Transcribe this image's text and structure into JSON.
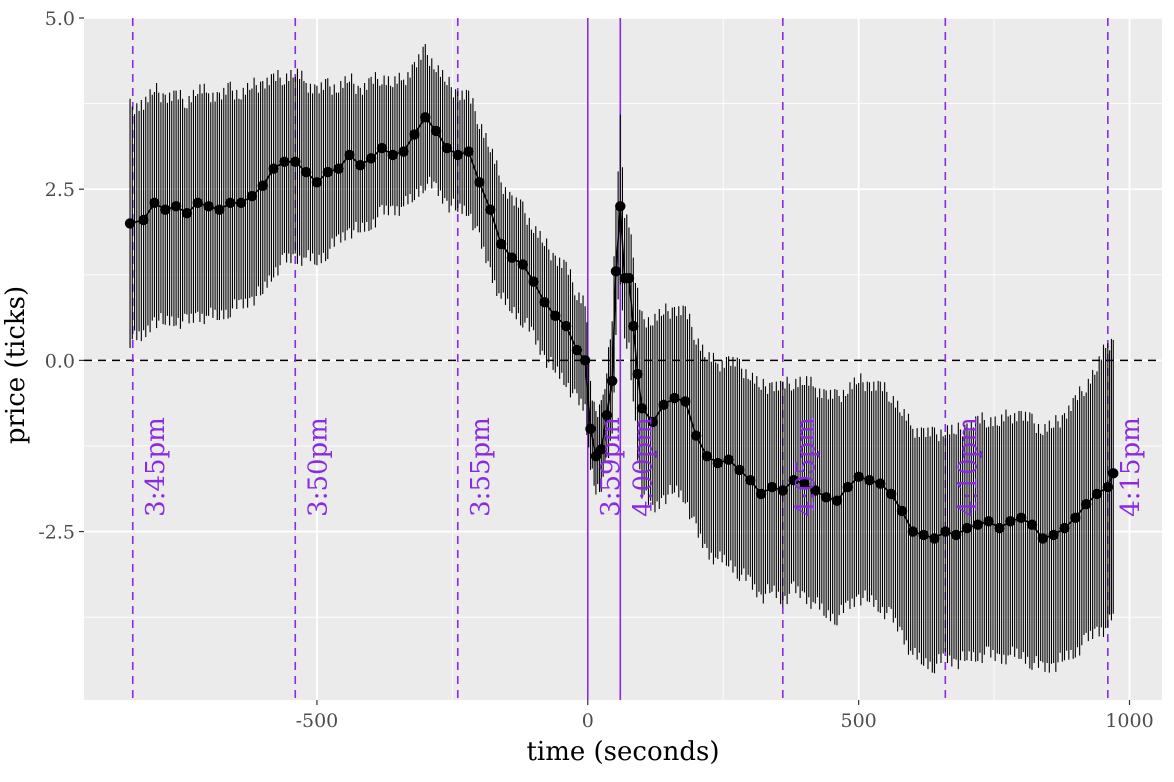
{
  "chart_data": {
    "type": "line",
    "title": "",
    "xlabel": "time (seconds)",
    "ylabel": "price (ticks)",
    "xlim": [
      -930,
      1060
    ],
    "ylim": [
      -4.96,
      5.0
    ],
    "x_ticks": [
      {
        "value": -500,
        "label": "-500"
      },
      {
        "value": 0,
        "label": "0"
      },
      {
        "value": 500,
        "label": "500"
      },
      {
        "value": 1000,
        "label": "1000"
      }
    ],
    "y_ticks": [
      {
        "value": 5.0,
        "label": "5.0"
      },
      {
        "value": 2.5,
        "label": "2.5"
      },
      {
        "value": 0.0,
        "label": "0.0"
      },
      {
        "value": -2.5,
        "label": "-2.5"
      }
    ],
    "grid": true,
    "reference_hline": {
      "y": 0,
      "style": "dashed",
      "color": "#000000"
    },
    "vertical_lines": [
      {
        "x": -840,
        "label": "3:45pm",
        "style": "dashed"
      },
      {
        "x": -540,
        "label": "3:50pm",
        "style": "dashed"
      },
      {
        "x": -240,
        "label": "3:55pm",
        "style": "dashed"
      },
      {
        "x": 0,
        "label": "3:59pm",
        "style": "solid"
      },
      {
        "x": 60,
        "label": "4:00pm",
        "style": "solid"
      },
      {
        "x": 360,
        "label": "4:05pm",
        "style": "dashed"
      },
      {
        "x": 660,
        "label": "4:10pm",
        "style": "dashed"
      },
      {
        "x": 960,
        "label": "4:15pm",
        "style": "dashed"
      }
    ],
    "vline_color": "#8a2be2",
    "series_color": "#000000",
    "series": [
      {
        "points": [
          {
            "x": -845,
            "y": 2.0,
            "lo": 0.3,
            "hi": 3.7
          },
          {
            "x": -820,
            "y": 2.05,
            "lo": 0.35,
            "hi": 3.75
          },
          {
            "x": -800,
            "y": 2.3,
            "lo": 0.6,
            "hi": 3.95
          },
          {
            "x": -780,
            "y": 2.2,
            "lo": 0.55,
            "hi": 3.85
          },
          {
            "x": -760,
            "y": 2.25,
            "lo": 0.6,
            "hi": 3.85
          },
          {
            "x": -740,
            "y": 2.15,
            "lo": 0.55,
            "hi": 3.8
          },
          {
            "x": -720,
            "y": 2.3,
            "lo": 0.65,
            "hi": 3.95
          },
          {
            "x": -700,
            "y": 2.25,
            "lo": 0.65,
            "hi": 3.9
          },
          {
            "x": -680,
            "y": 2.2,
            "lo": 0.65,
            "hi": 3.85
          },
          {
            "x": -660,
            "y": 2.3,
            "lo": 0.75,
            "hi": 3.95
          },
          {
            "x": -640,
            "y": 2.3,
            "lo": 0.8,
            "hi": 3.9
          },
          {
            "x": -620,
            "y": 2.4,
            "lo": 0.9,
            "hi": 4.0
          },
          {
            "x": -600,
            "y": 2.55,
            "lo": 1.0,
            "hi": 4.05
          },
          {
            "x": -580,
            "y": 2.8,
            "lo": 1.3,
            "hi": 4.1
          },
          {
            "x": -560,
            "y": 2.9,
            "lo": 1.45,
            "hi": 4.15
          },
          {
            "x": -540,
            "y": 2.9,
            "lo": 1.5,
            "hi": 4.2
          },
          {
            "x": -520,
            "y": 2.75,
            "lo": 1.5,
            "hi": 4.05
          },
          {
            "x": -500,
            "y": 2.6,
            "lo": 1.45,
            "hi": 3.95
          },
          {
            "x": -480,
            "y": 2.75,
            "lo": 1.6,
            "hi": 4.0
          },
          {
            "x": -460,
            "y": 2.8,
            "lo": 1.75,
            "hi": 4.0
          },
          {
            "x": -440,
            "y": 3.0,
            "lo": 1.9,
            "hi": 4.1
          },
          {
            "x": -420,
            "y": 2.85,
            "lo": 1.9,
            "hi": 3.95
          },
          {
            "x": -400,
            "y": 2.95,
            "lo": 2.0,
            "hi": 4.05
          },
          {
            "x": -380,
            "y": 3.1,
            "lo": 2.15,
            "hi": 4.15
          },
          {
            "x": -360,
            "y": 3.0,
            "lo": 2.2,
            "hi": 4.05
          },
          {
            "x": -340,
            "y": 3.05,
            "lo": 2.25,
            "hi": 4.1
          },
          {
            "x": -320,
            "y": 3.3,
            "lo": 2.4,
            "hi": 4.3
          },
          {
            "x": -300,
            "y": 3.55,
            "lo": 2.6,
            "hi": 4.5
          },
          {
            "x": -280,
            "y": 3.35,
            "lo": 2.5,
            "hi": 4.3
          },
          {
            "x": -260,
            "y": 3.1,
            "lo": 2.3,
            "hi": 4.05
          },
          {
            "x": -240,
            "y": 3.0,
            "lo": 2.2,
            "hi": 3.9
          },
          {
            "x": -220,
            "y": 3.05,
            "lo": 2.2,
            "hi": 3.85
          },
          {
            "x": -200,
            "y": 2.6,
            "lo": 1.75,
            "hi": 3.5
          },
          {
            "x": -180,
            "y": 2.2,
            "lo": 1.3,
            "hi": 3.1
          },
          {
            "x": -160,
            "y": 1.7,
            "lo": 0.9,
            "hi": 2.6
          },
          {
            "x": -140,
            "y": 1.5,
            "lo": 0.75,
            "hi": 2.35
          },
          {
            "x": -120,
            "y": 1.4,
            "lo": 0.6,
            "hi": 2.2
          },
          {
            "x": -100,
            "y": 1.15,
            "lo": 0.35,
            "hi": 1.95
          },
          {
            "x": -80,
            "y": 0.85,
            "lo": 0.05,
            "hi": 1.7
          },
          {
            "x": -60,
            "y": 0.65,
            "lo": -0.15,
            "hi": 1.5
          },
          {
            "x": -40,
            "y": 0.5,
            "lo": -0.3,
            "hi": 1.35
          },
          {
            "x": -20,
            "y": 0.15,
            "lo": -0.6,
            "hi": 1.0
          },
          {
            "x": -5,
            "y": 0.0,
            "lo": -0.7,
            "hi": 0.85
          },
          {
            "x": 5,
            "y": -1.0,
            "lo": -1.6,
            "hi": -0.3
          },
          {
            "x": 15,
            "y": -1.4,
            "lo": -1.9,
            "hi": -0.8
          },
          {
            "x": 25,
            "y": -1.3,
            "lo": -1.8,
            "hi": -0.7
          },
          {
            "x": 35,
            "y": -0.8,
            "lo": -1.5,
            "hi": -0.1
          },
          {
            "x": 45,
            "y": -0.3,
            "lo": -1.1,
            "hi": 0.6
          },
          {
            "x": 52,
            "y": 1.3,
            "lo": 0.4,
            "hi": 2.2
          },
          {
            "x": 60,
            "y": 2.25,
            "lo": 1.2,
            "hi": 3.5
          },
          {
            "x": 68,
            "y": 1.2,
            "lo": 0.2,
            "hi": 2.2
          },
          {
            "x": 76,
            "y": 1.2,
            "lo": 0.2,
            "hi": 2.0
          },
          {
            "x": 84,
            "y": 0.5,
            "lo": -0.6,
            "hi": 1.5
          },
          {
            "x": 92,
            "y": -0.2,
            "lo": -1.4,
            "hi": 1.0
          },
          {
            "x": 100,
            "y": -0.7,
            "lo": -1.9,
            "hi": 0.6
          },
          {
            "x": 120,
            "y": -0.9,
            "lo": -2.2,
            "hi": 0.6
          },
          {
            "x": 140,
            "y": -0.65,
            "lo": -2.0,
            "hi": 0.7
          },
          {
            "x": 160,
            "y": -0.55,
            "lo": -1.9,
            "hi": 0.75
          },
          {
            "x": 180,
            "y": -0.6,
            "lo": -2.0,
            "hi": 0.7
          },
          {
            "x": 200,
            "y": -1.1,
            "lo": -2.5,
            "hi": 0.35
          },
          {
            "x": 220,
            "y": -1.4,
            "lo": -2.8,
            "hi": 0.05
          },
          {
            "x": 240,
            "y": -1.5,
            "lo": -2.9,
            "hi": -0.05
          },
          {
            "x": 260,
            "y": -1.45,
            "lo": -2.95,
            "hi": 0.0
          },
          {
            "x": 280,
            "y": -1.6,
            "lo": -3.1,
            "hi": -0.1
          },
          {
            "x": 300,
            "y": -1.75,
            "lo": -3.25,
            "hi": -0.2
          },
          {
            "x": 320,
            "y": -1.95,
            "lo": -3.45,
            "hi": -0.4
          },
          {
            "x": 340,
            "y": -1.85,
            "lo": -3.35,
            "hi": -0.35
          },
          {
            "x": 360,
            "y": -1.9,
            "lo": -3.5,
            "hi": -0.4
          },
          {
            "x": 380,
            "y": -1.75,
            "lo": -3.35,
            "hi": -0.3
          },
          {
            "x": 400,
            "y": -1.8,
            "lo": -3.45,
            "hi": -0.3
          },
          {
            "x": 420,
            "y": -1.9,
            "lo": -3.55,
            "hi": -0.4
          },
          {
            "x": 440,
            "y": -2.0,
            "lo": -3.7,
            "hi": -0.5
          },
          {
            "x": 460,
            "y": -2.05,
            "lo": -3.75,
            "hi": -0.55
          },
          {
            "x": 480,
            "y": -1.85,
            "lo": -3.6,
            "hi": -0.4
          },
          {
            "x": 500,
            "y": -1.7,
            "lo": -3.45,
            "hi": -0.3
          },
          {
            "x": 520,
            "y": -1.75,
            "lo": -3.5,
            "hi": -0.35
          },
          {
            "x": 540,
            "y": -1.8,
            "lo": -3.6,
            "hi": -0.4
          },
          {
            "x": 560,
            "y": -1.95,
            "lo": -3.75,
            "hi": -0.5
          },
          {
            "x": 580,
            "y": -2.2,
            "lo": -4.0,
            "hi": -0.75
          },
          {
            "x": 600,
            "y": -2.5,
            "lo": -4.3,
            "hi": -1.0
          },
          {
            "x": 620,
            "y": -2.55,
            "lo": -4.4,
            "hi": -1.05
          },
          {
            "x": 640,
            "y": -2.6,
            "lo": -4.45,
            "hi": -1.1
          },
          {
            "x": 660,
            "y": -2.5,
            "lo": -4.35,
            "hi": -1.0
          },
          {
            "x": 680,
            "y": -2.55,
            "lo": -4.4,
            "hi": -1.05
          },
          {
            "x": 700,
            "y": -2.45,
            "lo": -4.35,
            "hi": -0.95
          },
          {
            "x": 720,
            "y": -2.4,
            "lo": -4.3,
            "hi": -0.9
          },
          {
            "x": 740,
            "y": -2.35,
            "lo": -4.3,
            "hi": -0.85
          },
          {
            "x": 760,
            "y": -2.45,
            "lo": -4.35,
            "hi": -0.9
          },
          {
            "x": 780,
            "y": -2.35,
            "lo": -4.3,
            "hi": -0.8
          },
          {
            "x": 800,
            "y": -2.3,
            "lo": -4.3,
            "hi": -0.8
          },
          {
            "x": 820,
            "y": -2.4,
            "lo": -4.4,
            "hi": -0.9
          },
          {
            "x": 840,
            "y": -2.6,
            "lo": -4.5,
            "hi": -1.0
          },
          {
            "x": 860,
            "y": -2.55,
            "lo": -4.45,
            "hi": -0.95
          },
          {
            "x": 880,
            "y": -2.45,
            "lo": -4.35,
            "hi": -0.8
          },
          {
            "x": 900,
            "y": -2.3,
            "lo": -4.25,
            "hi": -0.6
          },
          {
            "x": 920,
            "y": -2.1,
            "lo": -4.1,
            "hi": -0.35
          },
          {
            "x": 940,
            "y": -1.95,
            "lo": -3.95,
            "hi": -0.1
          },
          {
            "x": 960,
            "y": -1.85,
            "lo": -3.9,
            "hi": 0.25
          },
          {
            "x": 970,
            "y": -1.65,
            "lo": -3.7,
            "hi": 0.3
          }
        ]
      }
    ]
  }
}
